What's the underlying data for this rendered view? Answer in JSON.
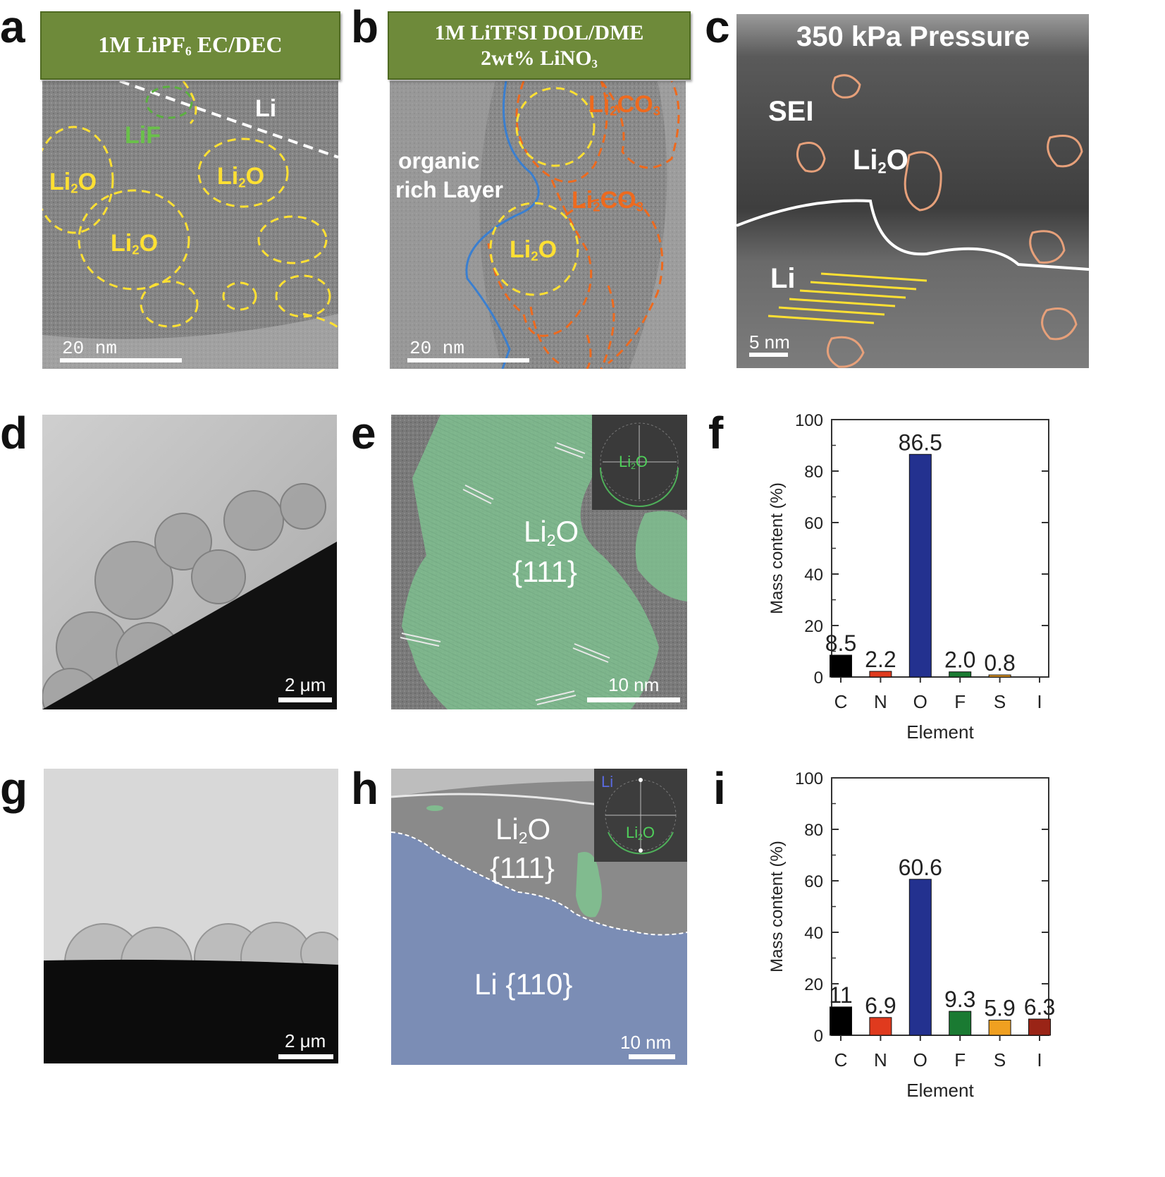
{
  "panels": {
    "a": {
      "letter": "a",
      "header": "1M LiPF",
      "header_sub": "6",
      "header_rest": " EC/DEC",
      "labels": {
        "li": "Li",
        "lif": "LiF",
        "li2o_1": "Li",
        "li2o_1_sub": "2",
        "li2o_1_rest": "O",
        "li2o_2": "Li",
        "li2o_2_sub": "2",
        "li2o_2_rest": "O",
        "li2o_3": "Li",
        "li2o_3_sub": "2",
        "li2o_3_rest": "O"
      },
      "scale": "20  nm"
    },
    "b": {
      "letter": "b",
      "header_line1": "1M LiTFSI DOL/DME",
      "header_line2": "2wt% LiNO",
      "header_line2_sub": "3",
      "labels": {
        "organic_1": "organic",
        "organic_2": "rich Layer",
        "li2co3_1": "Li",
        "li2co3_1_sub": "2",
        "li2co3_1_rest": "CO",
        "li2co3_1_sub2": "3",
        "li2co3_2": "Li",
        "li2co3_2_sub": "2",
        "li2co3_2_rest": "CO",
        "li2co3_2_sub2": "3",
        "li2o": "Li",
        "li2o_sub": "2",
        "li2o_rest": "O"
      },
      "scale": "20  nm"
    },
    "c": {
      "letter": "c",
      "title": "350 kPa Pressure",
      "labels": {
        "sei": "SEI",
        "li2o": "Li",
        "li2o_sub": "2",
        "li2o_rest": "O",
        "li": "Li"
      },
      "scale": "5 nm"
    },
    "d": {
      "letter": "d",
      "scale": "2 μm"
    },
    "e": {
      "letter": "e",
      "label_main": "Li",
      "label_sub": "2",
      "label_rest": "O",
      "label_plane": "{111}",
      "inset": "Li",
      "inset_sub": "2",
      "inset_rest": "O",
      "scale": "10 nm"
    },
    "g": {
      "letter": "g",
      "scale": "2 μm"
    },
    "h": {
      "letter": "h",
      "label_main": "Li",
      "label_sub": "2",
      "label_rest": "O",
      "label_plane": "{111}",
      "label_li": "Li {110}",
      "inset_li": "Li",
      "inset_li2o": "Li",
      "inset_li2o_sub": "2",
      "inset_li2o_rest": "O",
      "scale": "10 nm"
    }
  },
  "colors": {
    "bar_C": "#000000",
    "bar_N": "#e03a1e",
    "bar_O": "#23318f",
    "bar_F": "#1a7a32",
    "bar_S": "#f0a020",
    "bar_I": "#9a2416"
  },
  "chart_data": [
    {
      "panel": "f",
      "letter": "f",
      "type": "bar",
      "categories": [
        "C",
        "N",
        "O",
        "F",
        "S",
        "I"
      ],
      "values": [
        8.5,
        2.2,
        86.5,
        2.0,
        0.8,
        0
      ],
      "value_labels": [
        "8.5",
        "2.2",
        "86.5",
        "2.0",
        "0.8",
        ""
      ],
      "xlabel": "Element",
      "ylabel": "Mass content (%)",
      "ylim": [
        0,
        100
      ],
      "yticks": [
        "0",
        "20",
        "40",
        "60",
        "80",
        "100"
      ]
    },
    {
      "panel": "i",
      "letter": "i",
      "type": "bar",
      "categories": [
        "C",
        "N",
        "O",
        "F",
        "S",
        "I"
      ],
      "values": [
        11,
        6.9,
        60.6,
        9.3,
        5.9,
        6.3
      ],
      "value_labels": [
        "11",
        "6.9",
        "60.6",
        "9.3",
        "5.9",
        "6.3"
      ],
      "xlabel": "Element",
      "ylabel": "Mass content (%)",
      "ylim": [
        0,
        100
      ],
      "yticks": [
        "0",
        "20",
        "40",
        "60",
        "80",
        "100"
      ]
    }
  ]
}
